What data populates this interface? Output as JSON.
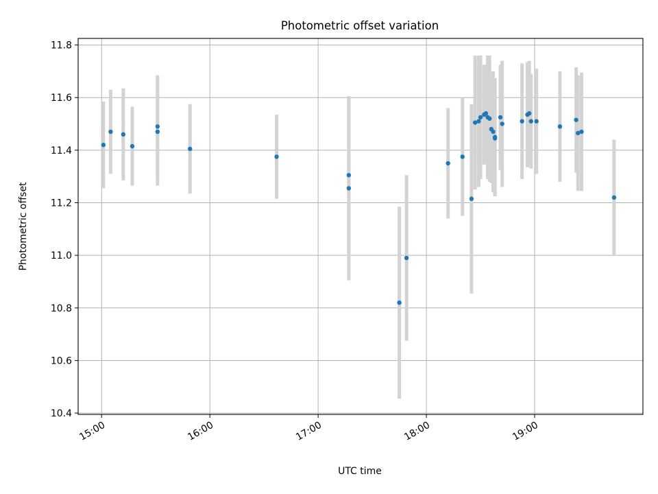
{
  "chart_data": {
    "type": "scatter",
    "title": "Photometric offset variation",
    "xlabel": "UTC time",
    "ylabel": "Photometric offset",
    "xlim": [
      "14:47",
      "20:00"
    ],
    "ylim": [
      10.395,
      11.825
    ],
    "x_ticks": [
      "15:00",
      "16:00",
      "17:00",
      "18:00",
      "19:00"
    ],
    "y_ticks": [
      "10.4",
      "10.6",
      "10.8",
      "11.0",
      "11.2",
      "11.4",
      "11.6",
      "11.8"
    ],
    "grid": true,
    "colors": {
      "point": "#1f77b4",
      "error_bar": "#d3d3d3",
      "grid": "#b0b0b0"
    },
    "points": [
      {
        "x": "15:01",
        "y": 11.42,
        "err": 0.165
      },
      {
        "x": "15:05",
        "y": 11.47,
        "err": 0.16
      },
      {
        "x": "15:12",
        "y": 11.46,
        "err": 0.175
      },
      {
        "x": "15:17",
        "y": 11.415,
        "err": 0.15
      },
      {
        "x": "15:31",
        "y": 11.47,
        "err": 0.205
      },
      {
        "x": "15:31",
        "y": 11.49,
        "err": 0.195
      },
      {
        "x": "15:49",
        "y": 11.405,
        "err": 0.17
      },
      {
        "x": "16:37",
        "y": 11.375,
        "err": 0.16
      },
      {
        "x": "17:17",
        "y": 11.305,
        "err": 0.3
      },
      {
        "x": "17:17",
        "y": 11.255,
        "err": 0.35
      },
      {
        "x": "17:45",
        "y": 10.82,
        "err": 0.365
      },
      {
        "x": "17:49",
        "y": 10.99,
        "err": 0.315
      },
      {
        "x": "18:12",
        "y": 11.35,
        "err": 0.21
      },
      {
        "x": "18:20",
        "y": 11.375,
        "err": 0.225
      },
      {
        "x": "18:25",
        "y": 11.215,
        "err": 0.36
      },
      {
        "x": "18:27",
        "y": 11.505,
        "err": 0.255
      },
      {
        "x": "18:29",
        "y": 11.51,
        "err": 0.25
      },
      {
        "x": "18:30",
        "y": 11.525,
        "err": 0.235
      },
      {
        "x": "18:32",
        "y": 11.535,
        "err": 0.19
      },
      {
        "x": "18:33",
        "y": 11.54,
        "err": 0.185
      },
      {
        "x": "18:34",
        "y": 11.525,
        "err": 0.235
      },
      {
        "x": "18:35",
        "y": 11.52,
        "err": 0.24
      },
      {
        "x": "18:36",
        "y": 11.48,
        "err": 0.205
      },
      {
        "x": "18:37",
        "y": 11.47,
        "err": 0.23
      },
      {
        "x": "18:38",
        "y": 11.45,
        "err": 0.225
      },
      {
        "x": "18:38",
        "y": 11.445,
        "err": 0.22
      },
      {
        "x": "18:41",
        "y": 11.525,
        "err": 0.2
      },
      {
        "x": "18:42",
        "y": 11.5,
        "err": 0.24
      },
      {
        "x": "18:53",
        "y": 11.51,
        "err": 0.22
      },
      {
        "x": "18:56",
        "y": 11.535,
        "err": 0.2
      },
      {
        "x": "18:57",
        "y": 11.54,
        "err": 0.2
      },
      {
        "x": "18:58",
        "y": 11.51,
        "err": 0.18
      },
      {
        "x": "19:01",
        "y": 11.51,
        "err": 0.2
      },
      {
        "x": "19:14",
        "y": 11.49,
        "err": 0.21
      },
      {
        "x": "19:23",
        "y": 11.515,
        "err": 0.2
      },
      {
        "x": "19:24",
        "y": 11.465,
        "err": 0.22
      },
      {
        "x": "19:26",
        "y": 11.47,
        "err": 0.225
      },
      {
        "x": "19:44",
        "y": 11.22,
        "err": 0.22
      }
    ]
  }
}
